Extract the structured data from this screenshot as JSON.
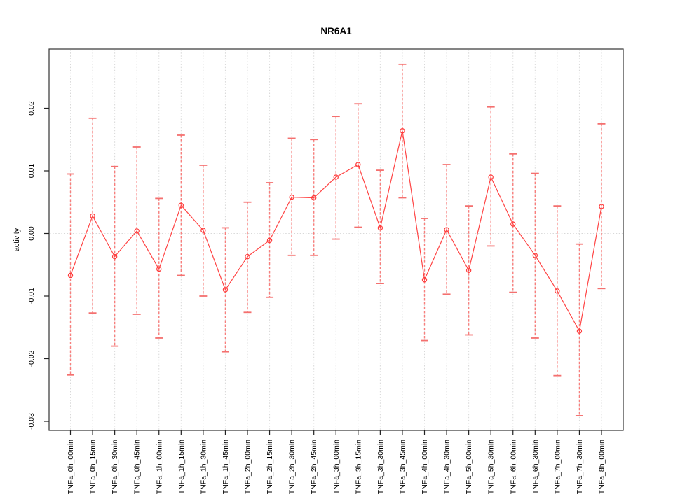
{
  "figure": {
    "title": "NR6A1",
    "background_color": "#ffffff"
  },
  "chart_data": {
    "type": "line",
    "title": "NR6A1",
    "xlabel": "",
    "ylabel": "activity",
    "ylim": [
      -0.0315,
      0.0294
    ],
    "yticks": [
      0.02,
      0.01,
      0.0,
      -0.01,
      -0.02,
      -0.03
    ],
    "ytick_labels": [
      "0.02",
      "0.01",
      "0.00",
      "-0.01",
      "-0.02",
      "-0.03"
    ],
    "grid": "dotted vertical line at every category; dotted horizontal line at y=0",
    "legend_position": "none",
    "point_style": "open-circle",
    "error_bar_style": "dashed vertical line with horizontal caps",
    "categories": [
      "TNFa_0h_00min",
      "TNFa_0h_15min",
      "TNFa_0h_30min",
      "TNFa_0h_45min",
      "TNFa_1h_00min",
      "TNFa_1h_15min",
      "TNFa_1h_30min",
      "TNFa_1h_45min",
      "TNFa_2h_00min",
      "TNFa_2h_15min",
      "TNFa_2h_30min",
      "TNFa_2h_45min",
      "TNFa_3h_00min",
      "TNFa_3h_15min",
      "TNFa_3h_30min",
      "TNFa_3h_45min",
      "TNFa_4h_00min",
      "TNFa_4h_30min",
      "TNFa_5h_00min",
      "TNFa_5h_30min",
      "TNFa_6h_00min",
      "TNFa_6h_30min",
      "TNFa_7h_00min",
      "TNFa_7h_30min",
      "TNFa_8h_00min"
    ],
    "series": [
      {
        "name": "activity",
        "values": [
          -0.0067,
          0.0028,
          -0.0037,
          0.0004,
          -0.0057,
          0.0045,
          0.0005,
          -0.009,
          -0.0037,
          -0.0011,
          0.0058,
          0.0057,
          0.009,
          0.011,
          0.0009,
          0.0164,
          -0.0074,
          0.0006,
          -0.0059,
          0.009,
          0.0015,
          -0.0035,
          -0.0092,
          -0.0156,
          0.0043
        ],
        "upper": [
          0.0095,
          0.0184,
          0.0107,
          0.0138,
          0.0056,
          0.0157,
          0.0109,
          0.0009,
          0.005,
          0.0081,
          0.0152,
          0.015,
          0.0187,
          0.0207,
          0.0101,
          0.027,
          0.0024,
          0.011,
          0.0044,
          0.0202,
          0.0127,
          0.0096,
          0.0044,
          -0.0017,
          0.0175
        ],
        "lower": [
          -0.0226,
          -0.0127,
          -0.018,
          -0.0129,
          -0.0167,
          -0.0067,
          -0.01,
          -0.0189,
          -0.0126,
          -0.0102,
          -0.0035,
          -0.0035,
          -0.0009,
          0.001,
          -0.008,
          0.0057,
          -0.0171,
          -0.0097,
          -0.0162,
          -0.002,
          -0.0094,
          -0.0167,
          -0.0227,
          -0.0291,
          -0.0088
        ]
      }
    ],
    "colors": {
      "series_line": "#ff4444",
      "point_stroke": "#ff3b3b",
      "error_bar": "#f87f7d",
      "error_cap": "#f4706f",
      "grid": "#d8d8d8",
      "axis_box": "#333333",
      "tick": "#222222",
      "text": "#000000",
      "background": "#ffffff"
    }
  }
}
